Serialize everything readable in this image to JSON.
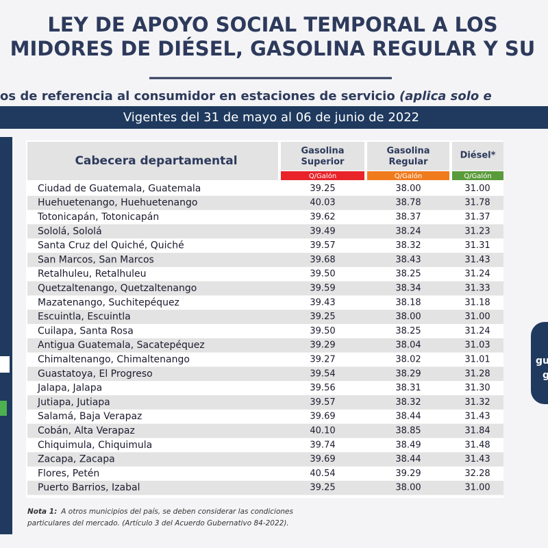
{
  "header": {
    "title_lines": [
      "LEY DE APOYO SOCIAL TEMPORAL A LOS",
      "MIDORES DE DIÉSEL, GASOLINA REGULAR Y SU"
    ],
    "subtitle": "os de referencia al consumidor en estaciones de servicio",
    "subtitle_italic": "(aplica solo e",
    "banner": "Vigentes del 31 de mayo al 06 de junio de 2022"
  },
  "table": {
    "columns": [
      "Cabecera departamental",
      "Gasolina Superior",
      "Gasolina Regular",
      "Diésel*"
    ],
    "units": [
      "Q/Galón",
      "Q/Galón",
      "Q/Galón"
    ],
    "rows": [
      [
        "Ciudad de Guatemala, Guatemala",
        "39.25",
        "38.00",
        "31.00"
      ],
      [
        "Huehuetenango, Huehuetenango",
        "40.03",
        "38.78",
        "31.78"
      ],
      [
        "Totonicapán, Totonicapán",
        "39.62",
        "38.37",
        "31.37"
      ],
      [
        "Sololá, Sololá",
        "39.49",
        "38.24",
        "31.23"
      ],
      [
        "Santa Cruz del Quiché, Quiché",
        "39.57",
        "38.32",
        "31.31"
      ],
      [
        "San Marcos, San Marcos",
        "39.68",
        "38.43",
        "31.43"
      ],
      [
        "Retalhuleu, Retalhuleu",
        "39.50",
        "38.25",
        "31.24"
      ],
      [
        "Quetzaltenango, Quetzaltenango",
        "39.59",
        "38.34",
        "31.33"
      ],
      [
        "Mazatenango, Suchitepéquez",
        "39.43",
        "38.18",
        "31.18"
      ],
      [
        "Escuintla, Escuintla",
        "39.25",
        "38.00",
        "31.00"
      ],
      [
        "Cuilapa, Santa Rosa",
        "39.50",
        "38.25",
        "31.24"
      ],
      [
        "Antigua Guatemala, Sacatepéquez",
        "39.29",
        "38.04",
        "31.03"
      ],
      [
        "Chimaltenango, Chimaltenango",
        "39.27",
        "38.02",
        "31.01"
      ],
      [
        "Guastatoya, El Progreso",
        "39.54",
        "38.29",
        "31.28"
      ],
      [
        "Jalapa, Jalapa",
        "39.56",
        "38.31",
        "31.30"
      ],
      [
        "Jutiapa, Jutiapa",
        "39.57",
        "38.32",
        "31.32"
      ],
      [
        "Salamá, Baja Verapaz",
        "39.69",
        "38.44",
        "31.43"
      ],
      [
        "Cobán, Alta Verapaz",
        "40.10",
        "38.85",
        "31.84"
      ],
      [
        "Chiquimula, Chiquimula",
        "39.74",
        "38.49",
        "31.48"
      ],
      [
        "Zacapa, Zacapa",
        "39.69",
        "38.44",
        "31.43"
      ],
      [
        "Flores, Petén",
        "40.54",
        "39.29",
        "32.28"
      ],
      [
        "Puerto Barrios, Izabal",
        "39.25",
        "38.00",
        "31.00"
      ]
    ]
  },
  "note": {
    "label": "Nota 1:",
    "lines": [
      "A otros municipios del país, se deben considerar las condiciones",
      "particulares del mercado.  (Artículo 3 del Acuerdo Gubernativo 84-2022)."
    ]
  },
  "side_fragments": [
    "gu",
    "g"
  ]
}
